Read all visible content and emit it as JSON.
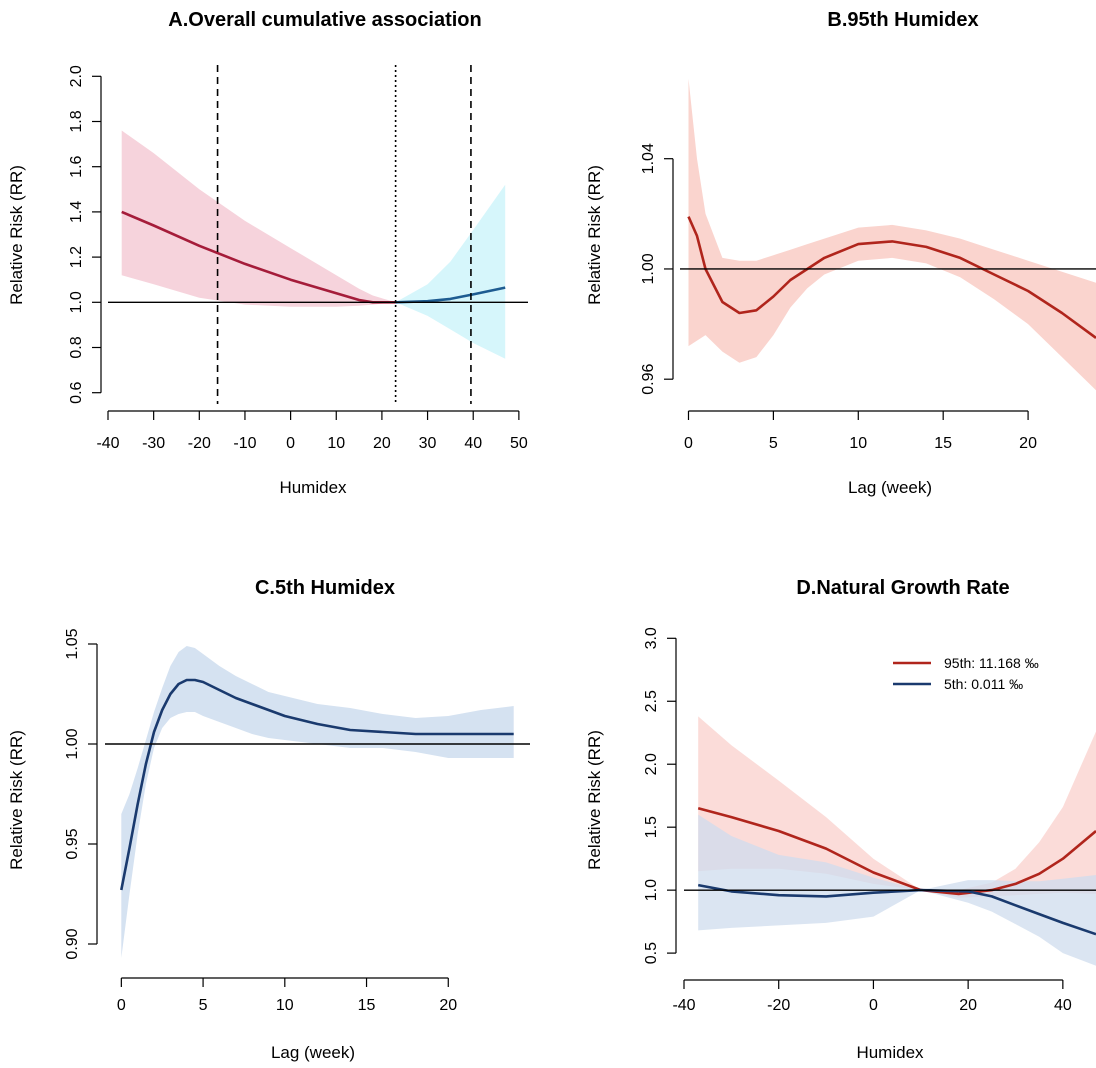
{
  "chart_data": [
    {
      "type": "line",
      "title": "A.Overall cumulative association",
      "xlabel": "Humidex",
      "ylabel": "Relative Risk (RR)",
      "xlim": [
        -40,
        52
      ],
      "ylim": [
        0.55,
        2.05
      ],
      "xticks": [
        -40,
        -30,
        -20,
        -10,
        0,
        10,
        20,
        30,
        40,
        50
      ],
      "yticks": [
        0.6,
        0.8,
        1.0,
        1.2,
        1.4,
        1.6,
        1.8,
        2.0
      ],
      "ref_line": 1.0,
      "vlines": [
        {
          "x": -16,
          "style": "dashed"
        },
        {
          "x": 23,
          "style": "dotted"
        },
        {
          "x": 39.5,
          "style": "dashed"
        }
      ],
      "series": [
        {
          "color": "#a51c3a",
          "band_color": "#f6d3dc",
          "x": [
            -37,
            -30,
            -20,
            -10,
            0,
            10,
            15,
            18,
            23
          ],
          "y": [
            1.4,
            1.34,
            1.25,
            1.17,
            1.1,
            1.04,
            1.01,
            1.0,
            1.0
          ],
          "lower": [
            1.12,
            1.08,
            1.02,
            0.99,
            0.98,
            0.98,
            0.985,
            0.99,
            1.0
          ],
          "upper": [
            1.76,
            1.66,
            1.5,
            1.36,
            1.24,
            1.12,
            1.06,
            1.03,
            1.0
          ]
        },
        {
          "color": "#1e5c91",
          "band_color": "#d6f6fb",
          "x": [
            23,
            30,
            35,
            40,
            47
          ],
          "y": [
            1.0,
            1.005,
            1.015,
            1.035,
            1.065
          ],
          "lower": [
            1.0,
            0.94,
            0.88,
            0.82,
            0.75
          ],
          "upper": [
            1.0,
            1.08,
            1.18,
            1.32,
            1.52
          ]
        }
      ]
    },
    {
      "type": "line",
      "title": "B.95th Humidex",
      "xlabel": "Lag (week)",
      "ylabel": "Relative Risk (RR)",
      "xlim": [
        -0.5,
        24
      ],
      "ylim": [
        0.951,
        1.074
      ],
      "xticks": [
        0,
        5,
        10,
        15,
        20
      ],
      "yticks": [
        0.96,
        1.0,
        1.04
      ],
      "ytick_labels": [
        "0.96",
        "1.00",
        "1.04"
      ],
      "ref_line": 1.0,
      "series": [
        {
          "color": "#b0251c",
          "band_color": "#fad4ce",
          "x": [
            0,
            0.5,
            1,
            2,
            3,
            4,
            5,
            6,
            7,
            8,
            10,
            12,
            14,
            16,
            18,
            20,
            22,
            24
          ],
          "y": [
            1.019,
            1.012,
            1.0,
            0.988,
            0.984,
            0.985,
            0.99,
            0.996,
            1.0,
            1.004,
            1.009,
            1.01,
            1.008,
            1.004,
            0.998,
            0.992,
            0.984,
            0.975
          ],
          "lower": [
            0.972,
            0.974,
            0.976,
            0.97,
            0.966,
            0.968,
            0.976,
            0.986,
            0.993,
            0.998,
            1.003,
            1.004,
            1.002,
            0.997,
            0.989,
            0.98,
            0.968,
            0.956
          ],
          "upper": [
            1.069,
            1.04,
            1.02,
            1.004,
            1.003,
            1.003,
            1.005,
            1.007,
            1.009,
            1.011,
            1.015,
            1.016,
            1.014,
            1.011,
            1.007,
            1.003,
            0.999,
            0.995
          ]
        }
      ]
    },
    {
      "type": "line",
      "title": "C.5th Humidex",
      "xlabel": "Lag (week)",
      "ylabel": "Relative Risk (RR)",
      "xlim": [
        -1,
        25
      ],
      "ylim": [
        0.887,
        1.056
      ],
      "xticks": [
        0,
        5,
        10,
        15,
        20
      ],
      "yticks": [
        0.9,
        0.95,
        1.0,
        1.05
      ],
      "ytick_labels": [
        "0.90",
        "0.95",
        "1.00",
        "1.05"
      ],
      "ref_line": 1.0,
      "series": [
        {
          "color": "#1a3a6e",
          "band_color": "#d5e2f1",
          "x": [
            0,
            0.5,
            1,
            1.5,
            2,
            2.5,
            3,
            3.5,
            4,
            4.5,
            5,
            6,
            7,
            8,
            9,
            10,
            12,
            14,
            16,
            18,
            20,
            22,
            24
          ],
          "y": [
            0.927,
            0.948,
            0.97,
            0.99,
            1.006,
            1.017,
            1.025,
            1.03,
            1.032,
            1.032,
            1.031,
            1.027,
            1.023,
            1.02,
            1.017,
            1.014,
            1.01,
            1.007,
            1.006,
            1.005,
            1.005,
            1.005,
            1.005
          ],
          "lower": [
            0.893,
            0.925,
            0.955,
            0.98,
            0.998,
            1.008,
            1.013,
            1.015,
            1.016,
            1.016,
            1.014,
            1.011,
            1.008,
            1.005,
            1.003,
            1.002,
            1.0,
            0.998,
            0.998,
            0.996,
            0.993,
            0.993,
            0.993
          ],
          "upper": [
            0.965,
            0.975,
            0.988,
            1.002,
            1.016,
            1.028,
            1.039,
            1.046,
            1.049,
            1.048,
            1.045,
            1.039,
            1.034,
            1.03,
            1.026,
            1.024,
            1.02,
            1.018,
            1.015,
            1.013,
            1.014,
            1.017,
            1.019
          ]
        }
      ]
    },
    {
      "type": "line",
      "title": "D.Natural Growth Rate",
      "xlabel": "Humidex",
      "ylabel": "Relative Risk (RR)",
      "xlim": [
        -40,
        47
      ],
      "ylim": [
        0.35,
        3.05
      ],
      "xticks": [
        -40,
        -20,
        0,
        20,
        40
      ],
      "yticks": [
        0.5,
        1.0,
        1.5,
        2.0,
        2.5,
        3.0
      ],
      "ref_line": 1.0,
      "legend": "top-right",
      "series": [
        {
          "name": "95th: 11.168 ‰",
          "color": "#b0251c",
          "band_color": "#f9d0cc",
          "x": [
            -37,
            -30,
            -20,
            -10,
            0,
            10,
            18,
            25,
            30,
            35,
            40,
            47
          ],
          "y": [
            1.65,
            1.58,
            1.47,
            1.33,
            1.14,
            1.0,
            0.97,
            1.0,
            1.05,
            1.13,
            1.25,
            1.47
          ],
          "lower": [
            1.15,
            1.17,
            1.17,
            1.13,
            1.05,
            1.0,
            0.94,
            0.95,
            0.96,
            0.97,
            0.98,
            0.97
          ],
          "upper": [
            2.38,
            2.15,
            1.87,
            1.58,
            1.25,
            1.0,
            1.0,
            1.06,
            1.17,
            1.38,
            1.66,
            2.26
          ]
        },
        {
          "name": "5th: 0.011 ‰",
          "color": "#1a3a6e",
          "band_color": "#cfdcee",
          "x": [
            -37,
            -30,
            -20,
            -10,
            0,
            10,
            20,
            25,
            30,
            35,
            40,
            47
          ],
          "y": [
            1.04,
            0.99,
            0.96,
            0.95,
            0.98,
            1.0,
            0.99,
            0.95,
            0.88,
            0.81,
            0.74,
            0.65
          ],
          "lower": [
            0.68,
            0.7,
            0.72,
            0.74,
            0.79,
            1.0,
            0.9,
            0.83,
            0.73,
            0.63,
            0.5,
            0.4
          ],
          "upper": [
            1.6,
            1.43,
            1.28,
            1.22,
            1.1,
            1.0,
            1.08,
            1.08,
            1.07,
            1.07,
            1.09,
            1.12
          ]
        }
      ]
    }
  ]
}
